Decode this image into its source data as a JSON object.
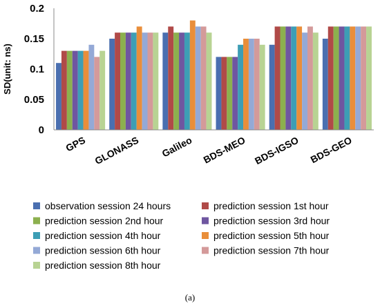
{
  "chart_data": {
    "type": "bar",
    "ylabel": "SD(unit: ns)",
    "ylim": [
      0,
      0.2
    ],
    "yticks": [
      "0",
      "0.05",
      "0.1",
      "0.15",
      "0.2"
    ],
    "categories": [
      "GPS",
      "GLONASS",
      "Galileo",
      "BDS-MEO",
      "BDS-IGSO",
      "BDS-GEO"
    ],
    "series": [
      {
        "name": "observation session 24 hours",
        "color": "#4a6fb0",
        "values": [
          0.11,
          0.15,
          0.16,
          0.12,
          0.14,
          0.15
        ]
      },
      {
        "name": "prediction session 1st hour",
        "color": "#b04a48",
        "values": [
          0.13,
          0.16,
          0.17,
          0.12,
          0.17,
          0.17
        ]
      },
      {
        "name": "prediction session 2nd hour",
        "color": "#8cb04e",
        "values": [
          0.13,
          0.16,
          0.16,
          0.12,
          0.17,
          0.17
        ]
      },
      {
        "name": "prediction session 3rd hour",
        "color": "#6f56a0",
        "values": [
          0.13,
          0.16,
          0.16,
          0.12,
          0.17,
          0.17
        ]
      },
      {
        "name": "prediction session 4th hour",
        "color": "#3d9eb5",
        "values": [
          0.13,
          0.16,
          0.16,
          0.14,
          0.17,
          0.17
        ]
      },
      {
        "name": "prediction session 5th hour",
        "color": "#e98e3a",
        "values": [
          0.13,
          0.17,
          0.18,
          0.15,
          0.17,
          0.17
        ]
      },
      {
        "name": "prediction session 6th hour",
        "color": "#94a9d6",
        "values": [
          0.14,
          0.16,
          0.17,
          0.15,
          0.16,
          0.17
        ]
      },
      {
        "name": "prediction session 7th hour",
        "color": "#d49a9a",
        "values": [
          0.12,
          0.16,
          0.17,
          0.15,
          0.17,
          0.17
        ]
      },
      {
        "name": "prediction session 8th hour",
        "color": "#b8d393",
        "values": [
          0.13,
          0.16,
          0.16,
          0.14,
          0.16,
          0.17
        ]
      }
    ],
    "grid": false,
    "legend_position": "bottom"
  },
  "caption": "(a)"
}
